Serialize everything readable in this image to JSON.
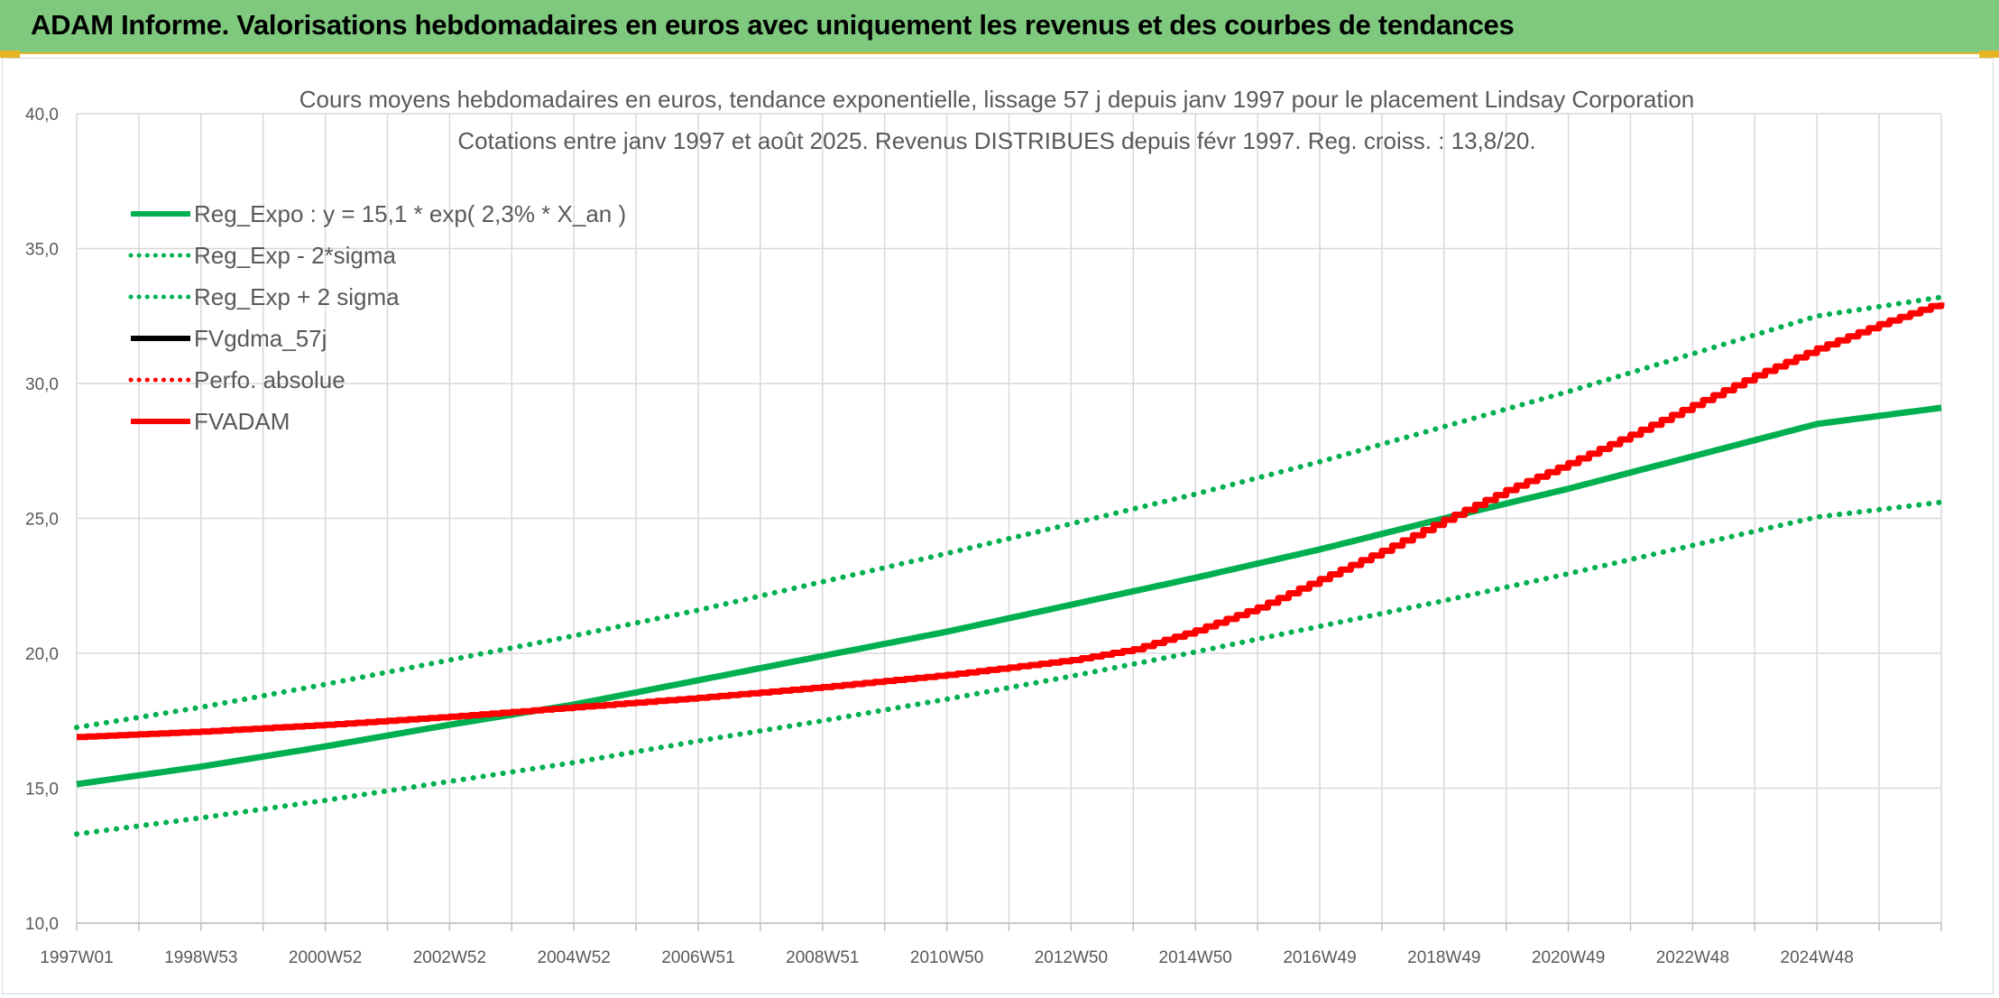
{
  "header": {
    "title": "ADAM Informe. Valorisations hebdomadaires en euros avec uniquement les revenus et des courbes de tendances"
  },
  "chart_data": {
    "type": "line",
    "title": "Cours moyens hebdomadaires en euros, tendance exponentielle, lissage 57 j depuis janv 1997 pour le placement Lindsay Corporation",
    "subtitle": "Cotations entre janv 1997 et août 2025. Revenus DISTRIBUES depuis févr 1997. Reg. croiss. : 13,8/20.",
    "xlabel": "",
    "ylabel": "",
    "ylim": [
      10,
      40
    ],
    "yticks": [
      "10,0",
      "15,0",
      "20,0",
      "25,0",
      "30,0",
      "35,0",
      "40,0"
    ],
    "xlim": [
      1997.0,
      2027.0
    ],
    "xtick_labels": [
      "1997W01",
      "1998W53",
      "2000W52",
      "2002W52",
      "2004W52",
      "2006W51",
      "2008W51",
      "2010W50",
      "2012W50",
      "2014W50",
      "2016W49",
      "2018W49",
      "2020W49",
      "2022W48",
      "2024W48"
    ],
    "xtick_positions": [
      1997,
      1999,
      2001,
      2003,
      2005,
      2007,
      2009,
      2011,
      2013,
      2015,
      2017,
      2019,
      2021,
      2023,
      2025
    ],
    "grid": true,
    "legend_position": "top-left",
    "series": [
      {
        "name": "Reg_Expo : y = 15,1 * exp( 2,3% *  X_an )",
        "style": "solid",
        "color": "#00b050",
        "x": [
          1997,
          1999,
          2001,
          2003,
          2005,
          2007,
          2009,
          2011,
          2013,
          2015,
          2017,
          2019,
          2021,
          2023,
          2025,
          2027
        ],
        "y": [
          15.15,
          15.8,
          16.55,
          17.35,
          18.1,
          19.0,
          19.9,
          20.8,
          21.8,
          22.8,
          23.85,
          25.0,
          26.1,
          27.3,
          28.5,
          29.1
        ]
      },
      {
        "name": "Reg_Exp - 2*sigma",
        "style": "dotted",
        "color": "#00b050",
        "x": [
          1997,
          1999,
          2001,
          2003,
          2005,
          2007,
          2009,
          2011,
          2013,
          2015,
          2017,
          2019,
          2021,
          2023,
          2025,
          2027
        ],
        "y": [
          13.3,
          13.9,
          14.55,
          15.25,
          15.95,
          16.75,
          17.5,
          18.3,
          19.15,
          20.05,
          21.0,
          21.95,
          22.95,
          24.0,
          25.05,
          25.6
        ]
      },
      {
        "name": "Reg_Exp + 2 sigma",
        "style": "dotted",
        "color": "#00b050",
        "x": [
          1997,
          1999,
          2001,
          2003,
          2005,
          2007,
          2009,
          2011,
          2013,
          2015,
          2017,
          2019,
          2021,
          2023,
          2025,
          2027
        ],
        "y": [
          17.25,
          18.0,
          18.85,
          19.75,
          20.65,
          21.6,
          22.65,
          23.7,
          24.8,
          25.9,
          27.1,
          28.4,
          29.7,
          31.1,
          32.5,
          33.2
        ]
      },
      {
        "name": "FVgdma_57j",
        "style": "solid",
        "color": "#000000",
        "x": [],
        "y": []
      },
      {
        "name": "Perfo. absolue",
        "style": "dotted",
        "color": "#ff0000",
        "x": [],
        "y": []
      },
      {
        "name": "FVADAM",
        "style": "solid-stepped",
        "color": "#ff0000",
        "x": [
          1997,
          1999,
          2001,
          2003,
          2005,
          2007,
          2009,
          2011,
          2013,
          2014,
          2015,
          2016,
          2017,
          2018,
          2019,
          2020,
          2021,
          2022,
          2023,
          2024,
          2025,
          2026,
          2027
        ],
        "y": [
          16.9,
          17.1,
          17.35,
          17.65,
          18.0,
          18.35,
          18.75,
          19.2,
          19.75,
          20.15,
          20.85,
          21.7,
          22.75,
          23.8,
          24.95,
          26.05,
          27.05,
          28.1,
          29.2,
          30.3,
          31.3,
          32.2,
          33.0
        ]
      }
    ]
  }
}
